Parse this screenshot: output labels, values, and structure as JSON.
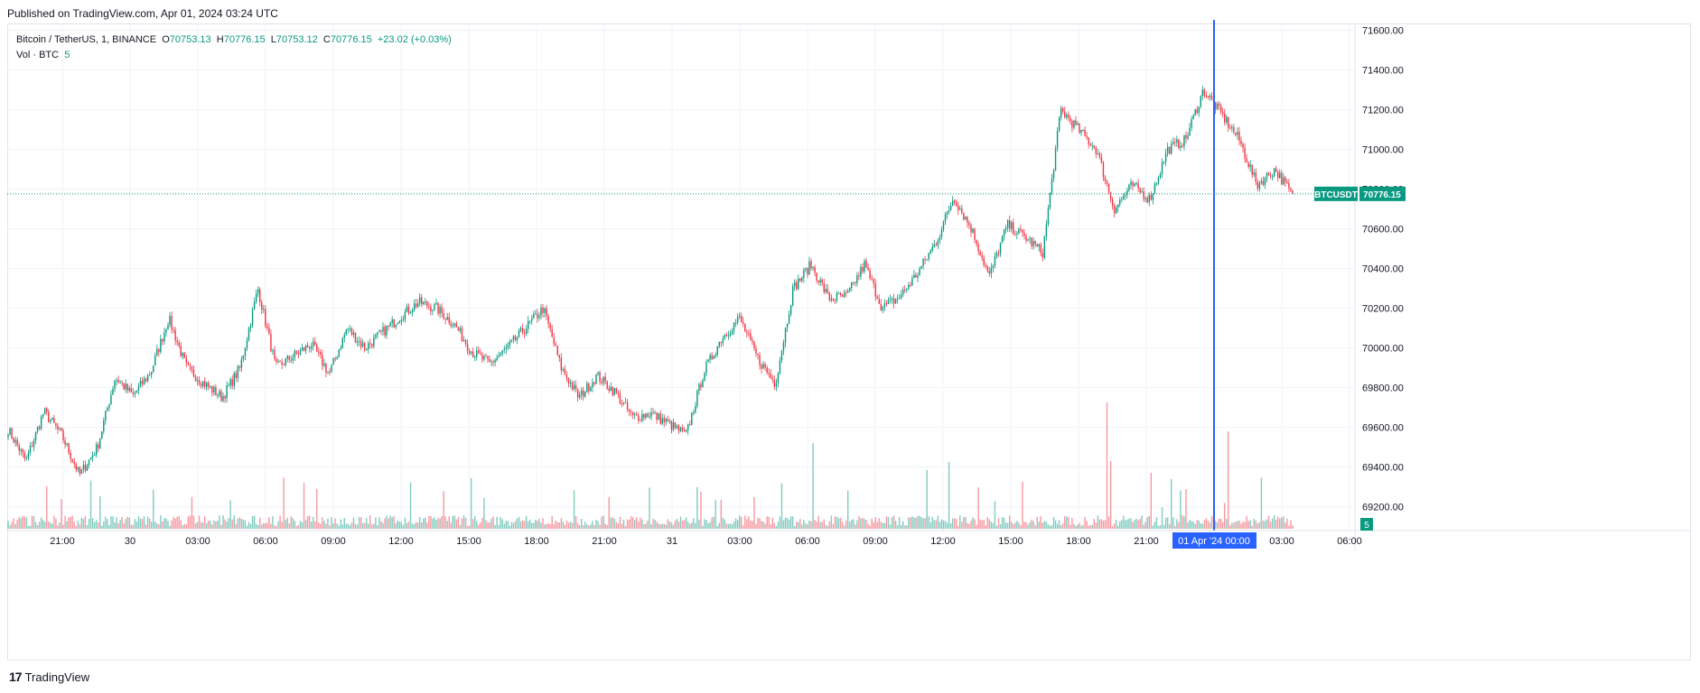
{
  "published": "Published on TradingView.com, Apr 01, 2024 03:24 UTC",
  "brand": "TradingView",
  "legend": {
    "symbol": "Bitcoin / TetherUS, 1, BINANCE",
    "o_label": "O",
    "o_value": "70753.13",
    "h_label": "H",
    "h_value": "70776.15",
    "l_label": "L",
    "l_value": "70753.12",
    "c_label": "C",
    "c_value": "70776.15",
    "change": "+23.02 (+0.03%)",
    "vol_label": "Vol · BTC",
    "vol_value": "5"
  },
  "colors": {
    "up": "#089981",
    "down": "#f23645",
    "grid": "#f0f3fa",
    "crosshair": "#2962ff",
    "price_line": "#089981",
    "axis_text": "#131722"
  },
  "price_tag": {
    "ticker": "BTCUSDT",
    "value": "70776.15"
  },
  "volume_tag": "5",
  "crosshair_label": "01 Apr '24   00:00",
  "chart_data": {
    "type": "candlestick",
    "title": "Bitcoin / TetherUS, 1, BINANCE",
    "interval": "1 minute",
    "ylim": [
      69080,
      71630
    ],
    "y_ticks": [
      "71600.00",
      "71400.00",
      "71200.00",
      "71000.00",
      "70800.00",
      "70600.00",
      "70400.00",
      "70200.00",
      "70000.00",
      "69800.00",
      "69600.00",
      "69400.00",
      "69200.00"
    ],
    "x_ticks": [
      "21:00",
      "30",
      "03:00",
      "06:00",
      "09:00",
      "12:00",
      "15:00",
      "18:00",
      "21:00",
      "31",
      "03:00",
      "06:00",
      "09:00",
      "12:00",
      "15:00",
      "18:00",
      "21:00",
      "00:00",
      "03:00",
      "06:00"
    ],
    "last_price": 70776.15,
    "crosshair_time": "01 Apr '24 00:00",
    "close_anchors": [
      69590,
      69430,
      69680,
      69560,
      69360,
      69500,
      69850,
      69760,
      69880,
      70150,
      69900,
      69820,
      69750,
      69900,
      70300,
      69900,
      69960,
      70020,
      69870,
      70100,
      70000,
      70080,
      70160,
      70230,
      70200,
      70120,
      69980,
      69920,
      70000,
      70100,
      70200,
      69900,
      69750,
      69860,
      69780,
      69650,
      69670,
      69620,
      69560,
      69880,
      70050,
      70150,
      69950,
      69820,
      70300,
      70420,
      70250,
      70260,
      70420,
      70200,
      70260,
      70380,
      70530,
      70760,
      70600,
      70360,
      70620,
      70560,
      70480,
      71200,
      71100,
      71000,
      70700,
      70820,
      70750,
      71000,
      71050,
      71300,
      71180,
      71050,
      70820,
      70900,
      70770
    ],
    "volume_note": "Volume series per candle (BTC), spikes near 18:30 Mar 31 and 00:00 Apr 01"
  }
}
